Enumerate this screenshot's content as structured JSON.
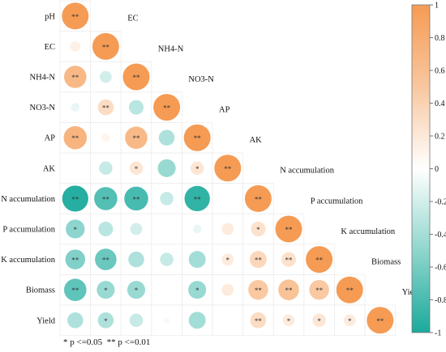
{
  "chart_data": {
    "type": "correlogram",
    "variables": [
      "pH",
      "EC",
      "NH4-N",
      "NO3-N",
      "AP",
      "AK",
      "N accumulation",
      "P accumulation",
      "K accumulation",
      "Biomass",
      "Yield"
    ],
    "colorbar": {
      "min": -1,
      "max": 1,
      "ticks": [
        "1",
        "0.8",
        "0.6",
        "0.4",
        "0.2",
        "0",
        "-0.2",
        "-0.4",
        "-0.6",
        "-0.8",
        "-1"
      ]
    },
    "colors": {
      "positive": "#f59b54",
      "negative": "#1aaa9c",
      "zero": "#ffffff"
    },
    "footnote": {
      "one_star": "* p <=0.05",
      "two_star": "** p <=0.01"
    },
    "matrix": [
      {
        "row": "pH",
        "values": [
          1
        ],
        "sig": [
          "**"
        ]
      },
      {
        "row": "EC",
        "values": [
          0.15,
          1
        ],
        "sig": [
          "",
          "**"
        ]
      },
      {
        "row": "NH4-N",
        "values": [
          0.7,
          -0.2,
          1
        ],
        "sig": [
          "**",
          "",
          "**"
        ]
      },
      {
        "row": "NO3-N",
        "values": [
          -0.1,
          0.35,
          -0.3,
          1
        ],
        "sig": [
          "",
          "**",
          "",
          "**"
        ]
      },
      {
        "row": "AP",
        "values": [
          0.75,
          0.1,
          0.7,
          -0.35,
          1
        ],
        "sig": [
          "**",
          "",
          "**",
          "",
          "**"
        ]
      },
      {
        "row": "AK",
        "values": [
          0,
          -0.25,
          0.25,
          -0.45,
          0.25,
          1
        ],
        "sig": [
          "",
          "",
          "*",
          "",
          "*",
          "**"
        ]
      },
      {
        "row": "N accumulation",
        "values": [
          -0.95,
          -0.75,
          -0.8,
          -0.25,
          -0.9,
          0,
          1
        ],
        "sig": [
          "**",
          "**",
          "**",
          "",
          "**",
          "",
          "**"
        ]
      },
      {
        "row": "P accumulation",
        "values": [
          -0.5,
          -0.3,
          -0.2,
          0,
          -0.1,
          0.2,
          0.3,
          1
        ],
        "sig": [
          "*",
          "",
          "",
          "",
          "",
          "",
          "*",
          "**"
        ]
      },
      {
        "row": "K accumulation",
        "values": [
          -0.55,
          -0.65,
          -0.35,
          -0.25,
          -0.4,
          0.2,
          0.4,
          0.3,
          1
        ],
        "sig": [
          "**",
          "**",
          "",
          "",
          "",
          "*",
          "**",
          "**",
          "**"
        ]
      },
      {
        "row": "Biomass",
        "values": [
          -0.7,
          -0.45,
          -0.45,
          0,
          -0.45,
          0.2,
          0.55,
          0.6,
          0.55,
          1
        ],
        "sig": [
          "**",
          "*",
          "*",
          "",
          "*",
          "",
          "**",
          "**",
          "**",
          "**"
        ]
      },
      {
        "row": "Yield",
        "values": [
          -0.35,
          -0.35,
          -0.25,
          -0.05,
          -0.4,
          0,
          0.35,
          0.2,
          0.25,
          0.2,
          1
        ],
        "sig": [
          "",
          "*",
          "",
          "",
          "",
          "",
          "**",
          "*",
          "*",
          "*",
          "**"
        ]
      }
    ]
  }
}
